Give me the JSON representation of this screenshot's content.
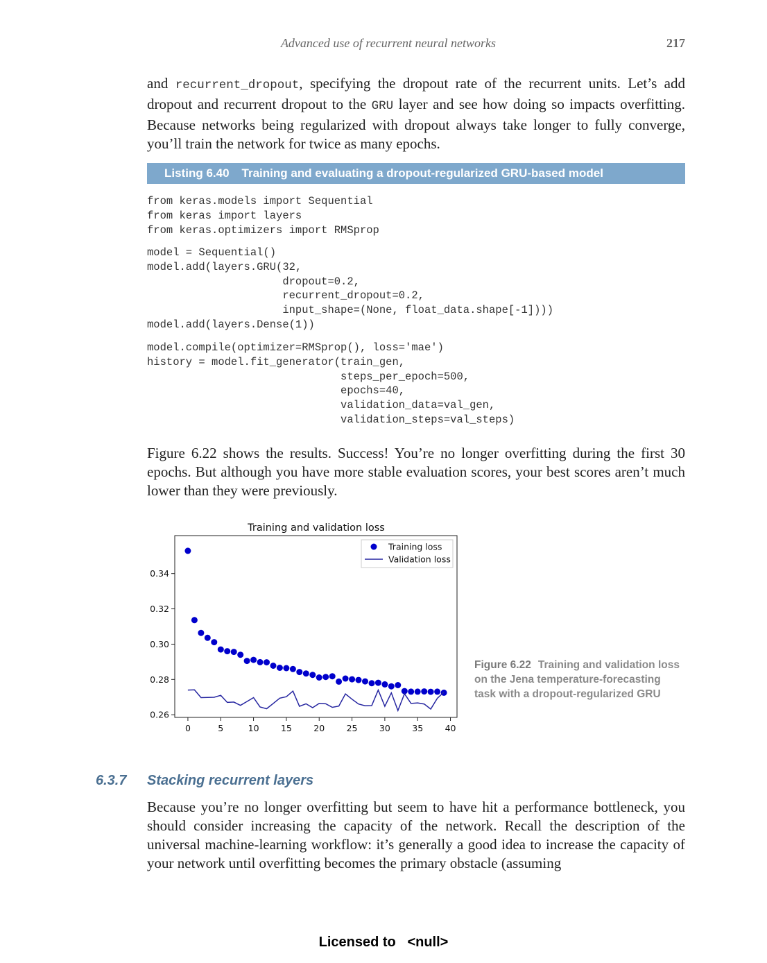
{
  "header": {
    "title": "Advanced use of recurrent neural networks",
    "page_number": "217"
  },
  "intro": {
    "t1": "and ",
    "code1": "recurrent_dropout",
    "t2": ", specifying the dropout rate of the recurrent units. Let’s add dropout and recurrent dropout to the ",
    "code2": "GRU",
    "t3": " layer and see how doing so impacts overfitting. Because networks being regularized with dropout always take longer to fully converge, you’ll train the network for twice as many epochs."
  },
  "listing": {
    "number": "Listing 6.40",
    "title": "Training and evaluating a dropout-regularized GRU-based model",
    "block1": "from keras.models import Sequential\nfrom keras import layers\nfrom keras.optimizers import RMSprop",
    "block2": "model = Sequential()\nmodel.add(layers.GRU(32,\n                     dropout=0.2,\n                     recurrent_dropout=0.2,\n                     input_shape=(None, float_data.shape[-1])))\nmodel.add(layers.Dense(1))",
    "block3": "model.compile(optimizer=RMSprop(), loss='mae')\nhistory = model.fit_generator(train_gen,\n                              steps_per_epoch=500,\n                              epochs=40,\n                              validation_data=val_gen,\n                              validation_steps=val_steps)"
  },
  "results_paragraph": "Figure 6.22 shows the results. Success! You’re no longer overfitting during the first 30 epochs. But although you have more stable evaluation scores, your best scores aren’t much lower than they were previously.",
  "chart_data": {
    "type": "scatter",
    "title": "Training and validation loss",
    "xlabel": "",
    "ylabel": "",
    "xlim": [
      -2,
      41
    ],
    "ylim": [
      0.2585,
      0.3615
    ],
    "xticks": [
      0,
      5,
      10,
      15,
      20,
      25,
      30,
      35,
      40
    ],
    "yticks": [
      0.26,
      0.28,
      0.3,
      0.32,
      0.34
    ],
    "ytick_labels": [
      "0.26",
      "0.28",
      "0.30",
      "0.32",
      "0.34"
    ],
    "grid": false,
    "legend_position": "top-right",
    "series": [
      {
        "name": "Training loss",
        "style": "dots",
        "color": "#0000cc",
        "x": [
          0,
          1,
          2,
          3,
          4,
          5,
          6,
          7,
          8,
          9,
          10,
          11,
          12,
          13,
          14,
          15,
          16,
          17,
          18,
          19,
          20,
          21,
          22,
          23,
          24,
          25,
          26,
          27,
          28,
          29,
          30,
          31,
          32,
          33,
          34,
          35,
          36,
          37,
          38,
          39
        ],
        "values": [
          0.3529,
          0.3136,
          0.3064,
          0.3036,
          0.3011,
          0.297,
          0.296,
          0.2956,
          0.294,
          0.2905,
          0.2911,
          0.2898,
          0.2897,
          0.2878,
          0.2866,
          0.2864,
          0.2859,
          0.2842,
          0.2834,
          0.2826,
          0.2811,
          0.2814,
          0.2818,
          0.2788,
          0.2805,
          0.2801,
          0.2797,
          0.2789,
          0.2779,
          0.2781,
          0.2772,
          0.2761,
          0.2768,
          0.2734,
          0.2731,
          0.2731,
          0.2732,
          0.273,
          0.2731,
          0.2725
        ]
      },
      {
        "name": "Validation loss",
        "style": "line",
        "color": "#2525a0",
        "x": [
          0,
          1,
          2,
          3,
          4,
          5,
          6,
          7,
          8,
          9,
          10,
          11,
          12,
          13,
          14,
          15,
          16,
          17,
          18,
          19,
          20,
          21,
          22,
          23,
          24,
          25,
          26,
          27,
          28,
          29,
          30,
          31,
          32,
          33,
          34,
          35,
          36,
          37,
          38,
          39
        ],
        "values": [
          0.274,
          0.2741,
          0.2697,
          0.2698,
          0.2699,
          0.271,
          0.267,
          0.2672,
          0.2653,
          0.2675,
          0.2697,
          0.2644,
          0.2634,
          0.2664,
          0.2694,
          0.2702,
          0.2734,
          0.2648,
          0.2662,
          0.264,
          0.2664,
          0.2662,
          0.2642,
          0.2649,
          0.2718,
          0.2688,
          0.2661,
          0.2651,
          0.2652,
          0.274,
          0.2648,
          0.2724,
          0.2624,
          0.2719,
          0.2664,
          0.2667,
          0.2661,
          0.2632,
          0.2693,
          0.2728
        ]
      }
    ]
  },
  "figure_caption": {
    "number": "Figure 6.22",
    "text": "Training and validation loss on the Jena temperature-forecasting task with a dropout-regularized GRU"
  },
  "section": {
    "number": "6.3.7",
    "title": "Stacking recurrent layers"
  },
  "section_paragraph": "Because you’re no longer overfitting but seem to have hit a performance bottleneck, you should consider increasing the capacity of the network. Recall the description of the universal machine-learning workflow: it’s generally a good idea to increase the capacity of your network until overfitting becomes the primary obstacle (assuming",
  "footer": {
    "text": "Licensed to   <null>"
  }
}
